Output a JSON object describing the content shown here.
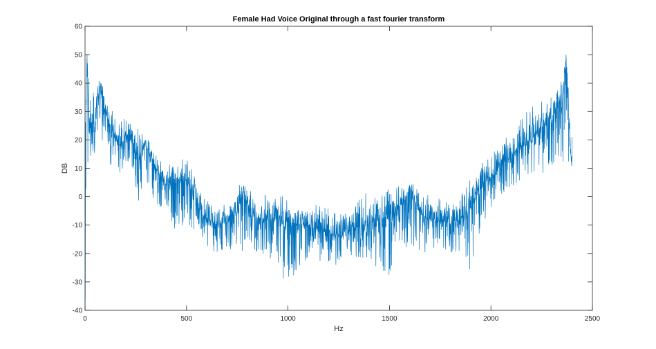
{
  "chart_data": {
    "type": "line",
    "title": "Female Had Voice Original through a fast fourier transform",
    "xlabel": "Hz",
    "ylabel": "DB",
    "xlim": [
      0,
      2500
    ],
    "ylim": [
      -40,
      60
    ],
    "xticks": [
      0,
      500,
      1000,
      1500,
      2000,
      2500
    ],
    "yticks": [
      -40,
      -30,
      -20,
      -10,
      0,
      10,
      20,
      30,
      40,
      50,
      60
    ],
    "grid": false,
    "legend": "none",
    "line_color": "#0072BD",
    "series": [
      {
        "x": [
          0,
          10,
          20,
          40,
          60,
          80,
          100,
          120,
          150,
          180,
          200,
          230,
          260,
          300,
          350,
          400,
          450,
          500,
          550,
          600,
          650,
          700,
          750,
          780,
          820,
          900,
          1000,
          1100,
          1200,
          1250,
          1300,
          1400,
          1500,
          1550,
          1600,
          1650,
          1700,
          1800,
          1850,
          1900,
          1950,
          2000,
          2050,
          2100,
          2150,
          2200,
          2250,
          2300,
          2330,
          2350,
          2370,
          2390,
          2400
        ],
        "y": [
          10,
          50,
          25,
          22,
          32,
          38,
          30,
          26,
          20,
          18,
          22,
          20,
          14,
          18,
          10,
          4,
          6,
          6,
          -2,
          -8,
          -10,
          -9,
          -5,
          2,
          -7,
          -8,
          -9,
          -10,
          -13,
          -14,
          -12,
          -9,
          -7,
          -4,
          2,
          -6,
          -8,
          -9,
          -8,
          -4,
          5,
          6,
          12,
          14,
          18,
          20,
          24,
          26,
          35,
          30,
          50,
          16,
          12
        ],
        "envelope_upper": [
          22,
          50,
          38,
          38,
          40,
          42,
          35,
          32,
          28,
          28,
          28,
          26,
          25,
          24,
          17,
          13,
          14,
          14,
          5,
          -1,
          -3,
          -2,
          3,
          6,
          2,
          1,
          0,
          -2,
          -4,
          -5,
          -3,
          2,
          3,
          4,
          6,
          2,
          1,
          -1,
          2,
          6,
          13,
          14,
          20,
          24,
          28,
          32,
          35,
          36,
          42,
          40,
          50,
          30,
          22
        ],
        "envelope_lower": [
          -40,
          12,
          8,
          14,
          18,
          20,
          16,
          12,
          7,
          8,
          10,
          6,
          -3,
          2,
          -3,
          -6,
          -14,
          -9,
          -14,
          -18,
          -20,
          -20,
          -17,
          -20,
          -20,
          -22,
          -31,
          -22,
          -24,
          -24,
          -22,
          -22,
          -30,
          -18,
          -18,
          -20,
          -19,
          -20,
          -21,
          -26,
          -12,
          -5,
          0,
          3,
          6,
          8,
          8,
          10,
          14,
          10,
          18,
          8,
          7
        ]
      }
    ]
  }
}
